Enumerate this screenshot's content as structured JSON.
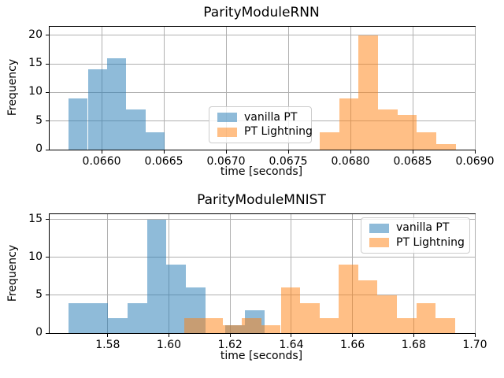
{
  "figure": {
    "background": "#ffffff"
  },
  "colors": {
    "vanilla_pt": "#1f77b4",
    "pt_lightning": "#ff7f0e",
    "grid": "#b0b0b0",
    "axis": "#000000",
    "legend_border": "#cccccc"
  },
  "chart_data": [
    {
      "type": "histogram",
      "title": "ParityModuleRNN",
      "xlabel": "time [seconds]",
      "ylabel": "Frequency",
      "xlim": [
        0.065582,
        0.069
      ],
      "ylim": [
        0,
        21.5
      ],
      "xticks": [
        0.066,
        0.0665,
        0.067,
        0.0675,
        0.068,
        0.0685,
        0.069
      ],
      "xtick_labels": [
        "0.0660",
        "0.0665",
        "0.0670",
        "0.0675",
        "0.0680",
        "0.0685",
        "0.0690"
      ],
      "yticks": [
        0,
        5,
        10,
        15,
        20
      ],
      "ytick_labels": [
        "0",
        "5",
        "10",
        "15",
        "20"
      ],
      "grid": true,
      "legend_position": "center",
      "series": [
        {
          "name": "vanilla PT",
          "color": "#1f77b4",
          "alpha": 0.5,
          "bin_start": 0.065734,
          "bin_width": 0.000155,
          "counts": [
            9,
            14,
            16,
            7,
            3
          ]
        },
        {
          "name": "PT Lightning",
          "color": "#ff7f0e",
          "alpha": 0.5,
          "bin_start": 0.067753,
          "bin_width": 0.000156,
          "counts": [
            3,
            9,
            20,
            7,
            6,
            3,
            1
          ]
        }
      ]
    },
    {
      "type": "histogram",
      "title": "ParityModuleMNIST",
      "xlabel": "time [seconds]",
      "ylabel": "Frequency",
      "xlim": [
        1.561,
        1.7
      ],
      "ylim": [
        0,
        15.7
      ],
      "xticks": [
        1.58,
        1.6,
        1.62,
        1.64,
        1.66,
        1.68,
        1.7
      ],
      "xtick_labels": [
        "1.58",
        "1.60",
        "1.62",
        "1.64",
        "1.66",
        "1.68",
        "1.70"
      ],
      "yticks": [
        0,
        5,
        10,
        15
      ],
      "ytick_labels": [
        "0",
        "5",
        "10",
        "15"
      ],
      "grid": true,
      "legend_position": "upper right",
      "series": [
        {
          "name": "vanilla PT",
          "color": "#1f77b4",
          "alpha": 0.5,
          "bin_start": 1.5672,
          "bin_width": 0.0064,
          "counts": [
            4,
            4,
            2,
            4,
            15,
            9,
            6,
            0,
            1,
            3
          ]
        },
        {
          "name": "PT Lightning",
          "color": "#ff7f0e",
          "alpha": 0.5,
          "bin_start": 1.6049,
          "bin_width": 0.00633,
          "counts": [
            2,
            2,
            1,
            2,
            1,
            6,
            4,
            2,
            9,
            7,
            5,
            2,
            4,
            2
          ]
        }
      ]
    }
  ]
}
